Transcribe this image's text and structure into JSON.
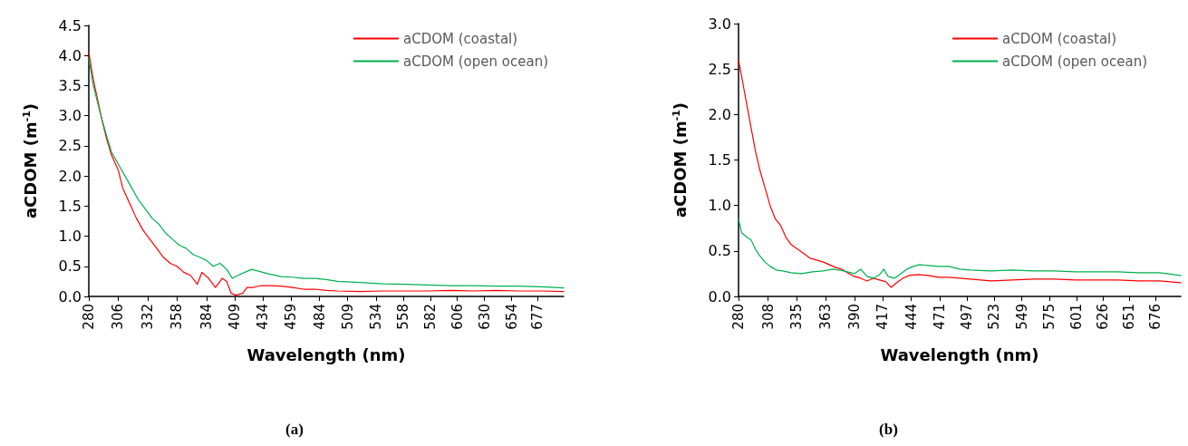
{
  "chart_data": [
    {
      "type": "line",
      "xlabel": "Wavelength (nm)",
      "ylabel": "aCDOM (m$^{-1}$)",
      "annotations": [
        "(a)"
      ],
      "legend": "top right",
      "grid": false,
      "marker": "none",
      "line_style": "solid",
      "xlim": [
        280,
        700
      ],
      "xticks": [
        280,
        306,
        332,
        358,
        384,
        409,
        434,
        459,
        484,
        509,
        534,
        558,
        582,
        606,
        630,
        654,
        677
      ],
      "ylim": [
        0,
        4.5
      ],
      "yticks": [
        {
          "value": 0,
          "label": "0.0"
        },
        0.5,
        {
          "value": 1,
          "label": "1.0"
        },
        1.5,
        {
          "value": 2,
          "label": "2.0"
        },
        2.5,
        {
          "value": 3,
          "label": "3.0"
        },
        3.5,
        {
          "value": 4,
          "label": "4.0"
        },
        4.5
      ],
      "series": [
        {
          "name": "aCDOM (coastal)",
          "color": "#ff0000",
          "x": [
            280,
            284,
            288,
            292,
            296,
            300,
            306,
            310,
            316,
            322,
            328,
            334,
            340,
            346,
            352,
            358,
            364,
            370,
            376,
            380,
            386,
            392,
            398,
            402,
            406,
            410,
            416,
            420,
            426,
            432,
            440,
            450,
            460,
            470,
            480,
            490,
            500,
            520,
            540,
            560,
            580,
            600,
            620,
            640,
            660,
            680,
            700
          ],
          "values": [
            4.05,
            3.6,
            3.25,
            2.9,
            2.6,
            2.35,
            2.1,
            1.8,
            1.55,
            1.3,
            1.1,
            0.95,
            0.8,
            0.65,
            0.55,
            0.5,
            0.4,
            0.35,
            0.2,
            0.4,
            0.3,
            0.15,
            0.3,
            0.25,
            0.05,
            0.02,
            0.05,
            0.15,
            0.15,
            0.18,
            0.18,
            0.17,
            0.15,
            0.12,
            0.12,
            0.1,
            0.09,
            0.08,
            0.09,
            0.09,
            0.09,
            0.1,
            0.09,
            0.1,
            0.09,
            0.09,
            0.08
          ]
        },
        {
          "name": "aCDOM (open ocean)",
          "color": "#00b050",
          "x": [
            280,
            284,
            290,
            296,
            300,
            306,
            312,
            318,
            324,
            330,
            336,
            342,
            348,
            354,
            360,
            366,
            372,
            378,
            384,
            390,
            396,
            402,
            407,
            412,
            418,
            424,
            430,
            440,
            450,
            460,
            470,
            480,
            490,
            500,
            520,
            540,
            560,
            580,
            600,
            620,
            640,
            660,
            680,
            700
          ],
          "values": [
            3.95,
            3.5,
            3.05,
            2.65,
            2.4,
            2.2,
            2.0,
            1.8,
            1.6,
            1.45,
            1.3,
            1.2,
            1.05,
            0.95,
            0.85,
            0.8,
            0.7,
            0.65,
            0.6,
            0.5,
            0.55,
            0.45,
            0.3,
            0.35,
            0.4,
            0.45,
            0.42,
            0.37,
            0.33,
            0.32,
            0.3,
            0.3,
            0.28,
            0.25,
            0.23,
            0.21,
            0.2,
            0.19,
            0.18,
            0.18,
            0.17,
            0.17,
            0.16,
            0.14
          ]
        }
      ]
    },
    {
      "type": "line",
      "xlabel": "Wavelength (nm)",
      "ylabel": "aCDOM (m$^{-1}$)",
      "annotations": [
        "(b)"
      ],
      "legend": "top right",
      "grid": false,
      "marker": "none",
      "line_style": "solid",
      "xlim": [
        280,
        700
      ],
      "xticks": [
        280,
        308,
        335,
        363,
        390,
        417,
        444,
        471,
        497,
        523,
        549,
        575,
        601,
        626,
        651,
        676
      ],
      "ylim": [
        0,
        3
      ],
      "yticks": [
        {
          "value": 0,
          "label": "0.0"
        },
        0.5,
        {
          "value": 1,
          "label": "1.0"
        },
        1.5,
        {
          "value": 2,
          "label": "2.0"
        },
        2.5,
        {
          "value": 3,
          "label": "3.0"
        }
      ],
      "series": [
        {
          "name": "aCDOM (coastal)",
          "color": "#ff0000",
          "x": [
            280,
            284,
            288,
            292,
            296,
            300,
            305,
            310,
            315,
            320,
            325,
            330,
            336,
            342,
            348,
            354,
            360,
            366,
            372,
            378,
            385,
            390,
            396,
            402,
            408,
            414,
            420,
            425,
            430,
            436,
            442,
            450,
            460,
            470,
            480,
            490,
            500,
            510,
            520,
            540,
            560,
            580,
            600,
            620,
            640,
            660,
            680,
            700
          ],
          "values": [
            2.6,
            2.35,
            2.1,
            1.85,
            1.6,
            1.4,
            1.2,
            1.0,
            0.85,
            0.78,
            0.65,
            0.57,
            0.52,
            0.47,
            0.42,
            0.4,
            0.38,
            0.35,
            0.32,
            0.3,
            0.25,
            0.22,
            0.2,
            0.17,
            0.2,
            0.18,
            0.16,
            0.1,
            0.15,
            0.2,
            0.23,
            0.24,
            0.23,
            0.21,
            0.21,
            0.2,
            0.19,
            0.18,
            0.17,
            0.18,
            0.19,
            0.19,
            0.18,
            0.18,
            0.18,
            0.17,
            0.17,
            0.15
          ]
        },
        {
          "name": "aCDOM (open ocean)",
          "color": "#00b050",
          "x": [
            280,
            283,
            288,
            292,
            296,
            300,
            305,
            310,
            316,
            322,
            330,
            340,
            350,
            360,
            370,
            380,
            390,
            396,
            402,
            408,
            414,
            418,
            422,
            428,
            434,
            440,
            446,
            452,
            460,
            470,
            480,
            490,
            500,
            520,
            540,
            560,
            580,
            600,
            620,
            640,
            660,
            680,
            700
          ],
          "values": [
            0.85,
            0.7,
            0.65,
            0.62,
            0.52,
            0.45,
            0.38,
            0.33,
            0.29,
            0.28,
            0.26,
            0.25,
            0.27,
            0.28,
            0.3,
            0.28,
            0.25,
            0.3,
            0.22,
            0.2,
            0.24,
            0.3,
            0.22,
            0.2,
            0.25,
            0.3,
            0.33,
            0.35,
            0.34,
            0.33,
            0.33,
            0.3,
            0.29,
            0.28,
            0.29,
            0.28,
            0.28,
            0.27,
            0.27,
            0.27,
            0.26,
            0.26,
            0.23
          ]
        }
      ]
    }
  ]
}
